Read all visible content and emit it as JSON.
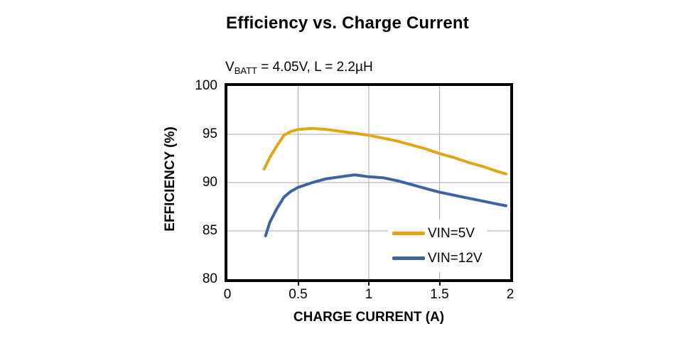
{
  "header": {
    "title": "Efficiency vs. Charge Current"
  },
  "subtitle": {
    "var": "V",
    "sub": "BATT",
    "rest": " = 4.05V, L = 2.2µH"
  },
  "axes": {
    "x_title": "CHARGE CURRENT (A)",
    "y_title": "EFFICIENCY (%)"
  },
  "colors": {
    "background": "#ffffff",
    "text": "#000000",
    "plot_border": "#000000",
    "grid": "#a9a9a9",
    "vin_5v_line": "#e0a615",
    "vin_12v_line": "#3d62a8"
  },
  "chart_data": {
    "type": "line",
    "title": "Efficiency vs. Charge Current",
    "subtitle": "VBATT = 4.05V, L = 2.2µH",
    "xlabel": "CHARGE CURRENT (A)",
    "ylabel": "EFFICIENCY (%)",
    "xlim": [
      0,
      2
    ],
    "ylim": [
      80,
      100
    ],
    "grid": true,
    "grid_x": [
      0.5,
      1,
      1.5
    ],
    "grid_y": [
      95,
      90,
      85
    ],
    "x_ticks": [
      {
        "label": "0",
        "value": 0
      },
      {
        "label": "0.5",
        "value": 0.5
      },
      {
        "label": "1",
        "value": 1
      },
      {
        "label": "1.5",
        "value": 1.5
      },
      {
        "label": "2",
        "value": 2
      }
    ],
    "y_ticks": [
      {
        "label": "100",
        "value": 100
      },
      {
        "label": "95",
        "value": 95
      },
      {
        "label": "90",
        "value": 90
      },
      {
        "label": "85",
        "value": 85
      },
      {
        "label": "80",
        "value": 80
      }
    ],
    "legend_position": "inside bottom-right",
    "series": [
      {
        "name": "VIN=5V",
        "color": "#e0a615",
        "x": [
          0.26,
          0.3,
          0.35,
          0.4,
          0.45,
          0.5,
          0.6,
          0.7,
          0.8,
          0.9,
          1.0,
          1.1,
          1.2,
          1.3,
          1.4,
          1.5,
          1.6,
          1.7,
          1.8,
          1.9,
          1.97
        ],
        "y": [
          91.4,
          92.6,
          93.8,
          94.9,
          95.3,
          95.5,
          95.6,
          95.5,
          95.3,
          95.1,
          94.9,
          94.6,
          94.3,
          93.9,
          93.5,
          93.0,
          92.6,
          92.1,
          91.7,
          91.2,
          90.9
        ]
      },
      {
        "name": "VIN=12V",
        "color": "#3d62a8",
        "x": [
          0.27,
          0.3,
          0.35,
          0.4,
          0.45,
          0.5,
          0.6,
          0.7,
          0.8,
          0.9,
          1.0,
          1.1,
          1.2,
          1.3,
          1.4,
          1.5,
          1.6,
          1.7,
          1.8,
          1.9,
          1.97
        ],
        "y": [
          84.5,
          85.9,
          87.3,
          88.5,
          89.1,
          89.5,
          90.0,
          90.4,
          90.6,
          90.8,
          90.6,
          90.5,
          90.2,
          89.8,
          89.4,
          89.0,
          88.7,
          88.4,
          88.1,
          87.8,
          87.6
        ]
      }
    ]
  }
}
